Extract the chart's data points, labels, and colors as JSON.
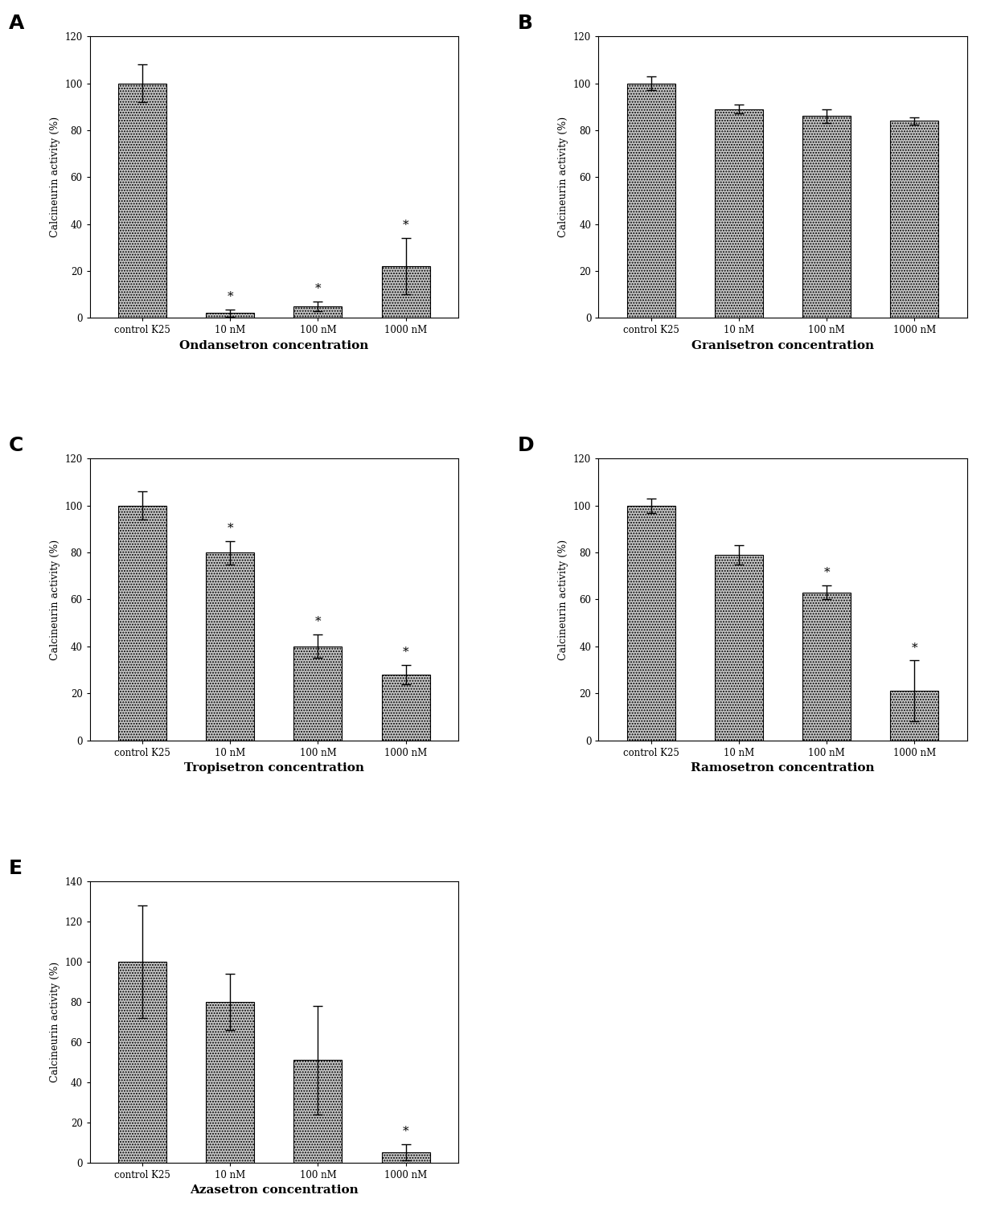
{
  "panels": [
    {
      "label": "A",
      "xlabel": "Ondansetron concentration",
      "categories": [
        "control K25",
        "10 nM",
        "100 nM",
        "1000 nM"
      ],
      "values": [
        100,
        2,
        5,
        22
      ],
      "errors": [
        8,
        1.5,
        2,
        12
      ],
      "sig": [
        false,
        true,
        true,
        true
      ],
      "ylim": [
        0,
        120
      ],
      "yticks": [
        0,
        20,
        40,
        60,
        80,
        100,
        120
      ]
    },
    {
      "label": "B",
      "xlabel": "Granisetron concentration",
      "categories": [
        "control K25",
        "10 nM",
        "100 nM",
        "1000 nM"
      ],
      "values": [
        100,
        89,
        86,
        84
      ],
      "errors": [
        3,
        2,
        3,
        1.5
      ],
      "sig": [
        false,
        false,
        false,
        false
      ],
      "ylim": [
        0,
        120
      ],
      "yticks": [
        0,
        20,
        40,
        60,
        80,
        100,
        120
      ]
    },
    {
      "label": "C",
      "xlabel": "Tropisetron concentration",
      "categories": [
        "control K25",
        "10 nM",
        "100 nM",
        "1000 nM"
      ],
      "values": [
        100,
        80,
        40,
        28
      ],
      "errors": [
        6,
        5,
        5,
        4
      ],
      "sig": [
        false,
        true,
        true,
        true
      ],
      "ylim": [
        0,
        120
      ],
      "yticks": [
        0,
        20,
        40,
        60,
        80,
        100,
        120
      ]
    },
    {
      "label": "D",
      "xlabel": "Ramosetron concentration",
      "categories": [
        "control K25",
        "10 nM",
        "100 nM",
        "1000 nM"
      ],
      "values": [
        100,
        79,
        63,
        21
      ],
      "errors": [
        3,
        4,
        3,
        13
      ],
      "sig": [
        false,
        false,
        true,
        true
      ],
      "ylim": [
        0,
        120
      ],
      "yticks": [
        0,
        20,
        40,
        60,
        80,
        100,
        120
      ]
    },
    {
      "label": "E",
      "xlabel": "Azasetron concentration",
      "categories": [
        "control K25",
        "10 nM",
        "100 nM",
        "1000 nM"
      ],
      "values": [
        100,
        80,
        51,
        5
      ],
      "errors": [
        28,
        14,
        27,
        4
      ],
      "sig": [
        false,
        false,
        false,
        true
      ],
      "ylim": [
        0,
        140
      ],
      "yticks": [
        0,
        20,
        40,
        60,
        80,
        100,
        120,
        140
      ]
    }
  ],
  "bar_color": "#c8c8c8",
  "bar_edgecolor": "#000000",
  "bar_hatch": ".....",
  "ylabel": "Calcineurin activity (%)",
  "sig_marker": "*",
  "xlabel_fontsize": 11,
  "ylabel_fontsize": 9,
  "tick_fontsize": 8.5,
  "label_fontsize": 18,
  "sig_fontsize": 11,
  "background_color": "#ffffff"
}
